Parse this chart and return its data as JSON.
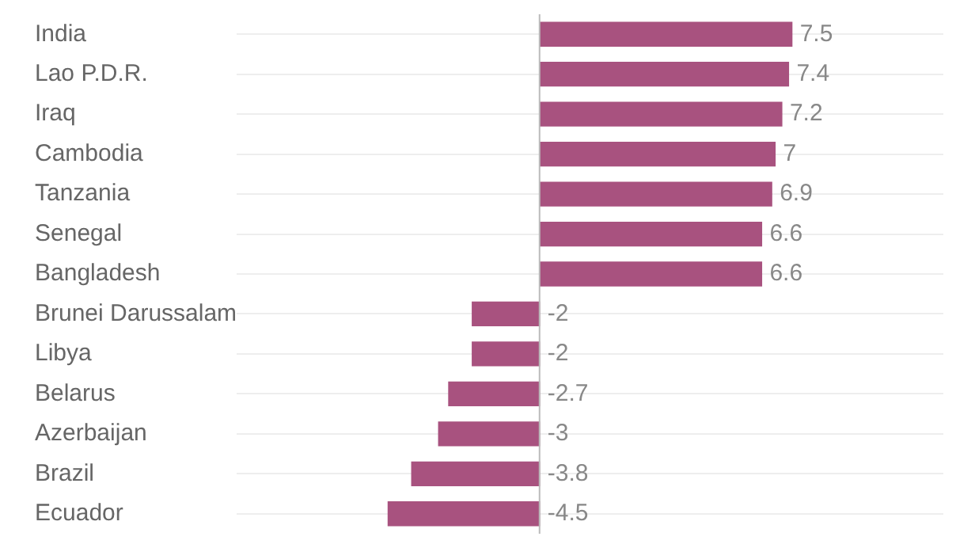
{
  "chart_data": {
    "type": "bar",
    "orientation": "horizontal",
    "categories": [
      "India",
      "Lao P.D.R.",
      "Iraq",
      "Cambodia",
      "Tanzania",
      "Senegal",
      "Bangladesh",
      "Brunei Darussalam",
      "Libya",
      "Belarus",
      "Azerbaijan",
      "Brazil",
      "Ecuador"
    ],
    "values": [
      7.5,
      7.4,
      7.2,
      7,
      6.9,
      6.6,
      6.6,
      -2,
      -2,
      -2.7,
      -3,
      -3.8,
      -4.5
    ],
    "color": "#a8527f",
    "xlim": [
      -9,
      12
    ],
    "tick_labels": "y",
    "grid": "y",
    "data_labels": true,
    "legend": false
  }
}
